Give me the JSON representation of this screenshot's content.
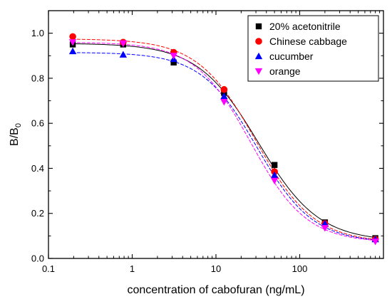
{
  "chart_data": {
    "type": "scatter",
    "xlabel": "concentration of cabofuran (ng/mL)",
    "ylabel_main": "B/B",
    "ylabel_sub": "0",
    "x_scale": "log",
    "xlim": [
      0.1,
      1000
    ],
    "ylim": [
      0.0,
      1.1
    ],
    "x_tick_labels": [
      "0.1",
      "1",
      "10",
      "100"
    ],
    "y_tick_labels": [
      "0.0",
      "0.2",
      "0.4",
      "0.6",
      "0.8",
      "1.0"
    ],
    "grid": false,
    "legend_position": "top-right",
    "series": [
      {
        "name": "20% acetonitrile",
        "color": "#000000",
        "marker": "square",
        "x": [
          0.195,
          0.78,
          3.125,
          12.5,
          50,
          200,
          800
        ],
        "y": [
          0.95,
          0.95,
          0.87,
          0.735,
          0.415,
          0.16,
          0.09
        ],
        "curve": {
          "top": 0.955,
          "bottom": 0.075,
          "ec50": 32,
          "hill": 1.2
        }
      },
      {
        "name": "Chinese cabbage",
        "color": "#ff0000",
        "marker": "circle",
        "x": [
          0.195,
          0.78,
          3.125,
          12.5,
          50,
          200,
          800
        ],
        "y": [
          0.985,
          0.96,
          0.915,
          0.75,
          0.385,
          0.155,
          0.085
        ],
        "curve": {
          "top": 0.975,
          "bottom": 0.07,
          "ec50": 30,
          "hill": 1.25
        }
      },
      {
        "name": "cucumber",
        "color": "#0000ff",
        "marker": "triangle-up",
        "x": [
          0.195,
          0.78,
          3.125,
          12.5,
          50,
          200,
          800
        ],
        "y": [
          0.92,
          0.905,
          0.885,
          0.72,
          0.37,
          0.155,
          0.085
        ],
        "curve": {
          "top": 0.915,
          "bottom": 0.07,
          "ec50": 31,
          "hill": 1.3
        }
      },
      {
        "name": "orange",
        "color": "#ff00ff",
        "marker": "triangle-down",
        "x": [
          0.195,
          0.78,
          3.125,
          12.5,
          50,
          200,
          800
        ],
        "y": [
          0.96,
          0.955,
          0.9,
          0.695,
          0.345,
          0.135,
          0.075
        ],
        "curve": {
          "top": 0.96,
          "bottom": 0.07,
          "ec50": 26,
          "hill": 1.3
        }
      }
    ]
  }
}
